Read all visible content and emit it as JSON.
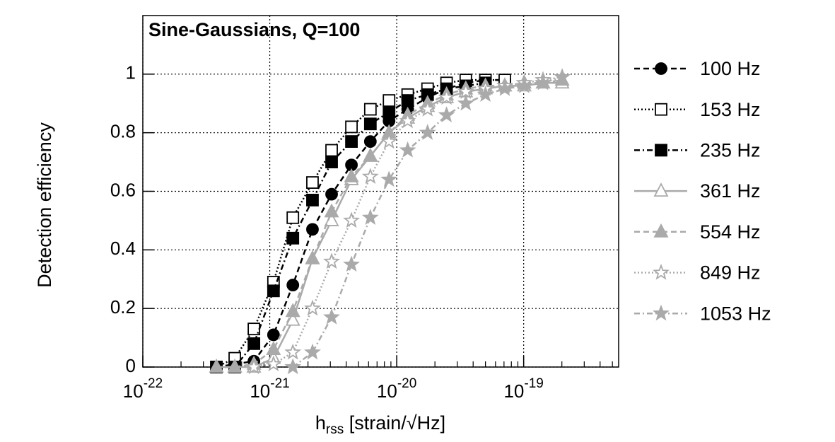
{
  "chart_data": {
    "type": "line",
    "title": "Sine-Gaussians, Q=100",
    "ylabel": "Detection efficiency",
    "xlabel": [
      "h",
      "rss",
      " [strain/√Hz]"
    ],
    "log_x": true,
    "grid": true,
    "xlim": [
      1e-22,
      5.6e-19
    ],
    "ylim": [
      0,
      1.2
    ],
    "xticks": [
      {
        "value": 1e-22,
        "label": "10-22"
      },
      {
        "value": 1e-21,
        "label": "10-21"
      },
      {
        "value": 1e-20,
        "label": "10-20"
      },
      {
        "value": 1e-19,
        "label": "10-19"
      }
    ],
    "yticks": [
      0,
      0.2,
      0.4,
      0.6,
      0.8,
      1
    ],
    "series": [
      {
        "name": "100 Hz",
        "color": "#000000",
        "marker": "circle",
        "dash": "dashed",
        "x": [
          3.8e-22,
          5.3e-22,
          7.5e-22,
          1.07e-21,
          1.52e-21,
          2.17e-21,
          3.07e-21,
          4.4e-21,
          6.2e-21,
          8.7e-21,
          1.22e-20,
          1.75e-20,
          2.47e-20,
          3.5e-20,
          5e-20,
          7.1e-20
        ],
        "values": [
          0.0,
          0.01,
          0.02,
          0.11,
          0.28,
          0.47,
          0.59,
          0.69,
          0.77,
          0.84,
          0.88,
          0.92,
          0.95,
          0.97,
          0.98,
          0.98
        ]
      },
      {
        "name": "153 Hz",
        "color": "#000000",
        "marker": "square-open",
        "dash": "dotted",
        "x": [
          3.8e-22,
          5.3e-22,
          7.5e-22,
          1.07e-21,
          1.52e-21,
          2.17e-21,
          3.07e-21,
          4.4e-21,
          6.2e-21,
          8.7e-21,
          1.22e-20,
          1.75e-20,
          2.47e-20,
          3.5e-20,
          5e-20,
          7.1e-20
        ],
        "values": [
          0.0,
          0.03,
          0.13,
          0.29,
          0.51,
          0.63,
          0.74,
          0.82,
          0.88,
          0.91,
          0.93,
          0.95,
          0.97,
          0.98,
          0.98,
          0.98
        ]
      },
      {
        "name": "235 Hz",
        "color": "#000000",
        "marker": "square",
        "dash": "dashdot",
        "x": [
          3.8e-22,
          5.3e-22,
          7.5e-22,
          1.07e-21,
          1.52e-21,
          2.17e-21,
          3.07e-21,
          4.4e-21,
          6.2e-21,
          8.7e-21,
          1.22e-20,
          1.75e-20,
          2.47e-20,
          3.5e-20,
          5e-20
        ],
        "values": [
          0.0,
          0.0,
          0.08,
          0.26,
          0.44,
          0.57,
          0.7,
          0.77,
          0.83,
          0.87,
          0.91,
          0.93,
          0.95,
          0.96,
          0.97
        ]
      },
      {
        "name": "361 Hz",
        "color": "#aaaaaa",
        "marker": "triangle-open",
        "dash": "solid",
        "x": [
          3.8e-22,
          5.3e-22,
          7.5e-22,
          1.07e-21,
          1.52e-21,
          2.17e-21,
          3.07e-21,
          4.4e-21,
          6.2e-21,
          8.7e-21,
          1.22e-20,
          1.75e-20,
          2.47e-20,
          3.5e-20,
          5e-20,
          7.1e-20,
          1.01e-19,
          1.42e-19,
          2.01e-19
        ],
        "values": [
          0.0,
          0.0,
          0.0,
          0.03,
          0.16,
          0.37,
          0.5,
          0.64,
          0.72,
          0.8,
          0.85,
          0.89,
          0.92,
          0.94,
          0.95,
          0.96,
          0.96,
          0.97,
          0.97
        ]
      },
      {
        "name": "554 Hz",
        "color": "#aaaaaa",
        "marker": "triangle",
        "dash": "dashed",
        "x": [
          3.8e-22,
          5.3e-22,
          7.5e-22,
          1.07e-21,
          1.52e-21,
          2.17e-21,
          3.07e-21,
          4.4e-21,
          6.2e-21,
          8.7e-21,
          1.22e-20,
          1.75e-20,
          2.47e-20,
          3.5e-20,
          5e-20,
          7.1e-20,
          1.01e-19,
          1.42e-19,
          2.01e-19
        ],
        "values": [
          0.0,
          0.0,
          0.01,
          0.06,
          0.19,
          0.37,
          0.53,
          0.65,
          0.72,
          0.8,
          0.86,
          0.9,
          0.93,
          0.95,
          0.96,
          0.96,
          0.97,
          0.97,
          0.98
        ]
      },
      {
        "name": "849 Hz",
        "color": "#aaaaaa",
        "marker": "star-open",
        "dash": "dotted",
        "x": [
          7.5e-22,
          1.07e-21,
          1.52e-21,
          2.17e-21,
          3.07e-21,
          4.4e-21,
          6.2e-21,
          8.7e-21,
          1.22e-20,
          1.75e-20,
          2.47e-20,
          3.5e-20,
          5e-20,
          7.1e-20,
          1.01e-19,
          1.42e-19,
          2.01e-19
        ],
        "values": [
          0.0,
          0.01,
          0.05,
          0.2,
          0.36,
          0.5,
          0.65,
          0.77,
          0.84,
          0.88,
          0.92,
          0.94,
          0.95,
          0.96,
          0.97,
          0.98,
          0.99
        ]
      },
      {
        "name": "1053 Hz",
        "color": "#aaaaaa",
        "marker": "star",
        "dash": "dashdot",
        "x": [
          1.52e-21,
          2.17e-21,
          3.07e-21,
          4.4e-21,
          6.2e-21,
          8.7e-21,
          1.22e-20,
          1.75e-20,
          2.47e-20,
          3.5e-20,
          5e-20,
          7.1e-20,
          1.01e-19,
          1.42e-19,
          2.01e-19
        ],
        "values": [
          0.0,
          0.05,
          0.17,
          0.35,
          0.51,
          0.64,
          0.74,
          0.8,
          0.86,
          0.9,
          0.93,
          0.95,
          0.96,
          0.97,
          0.99
        ]
      }
    ]
  }
}
